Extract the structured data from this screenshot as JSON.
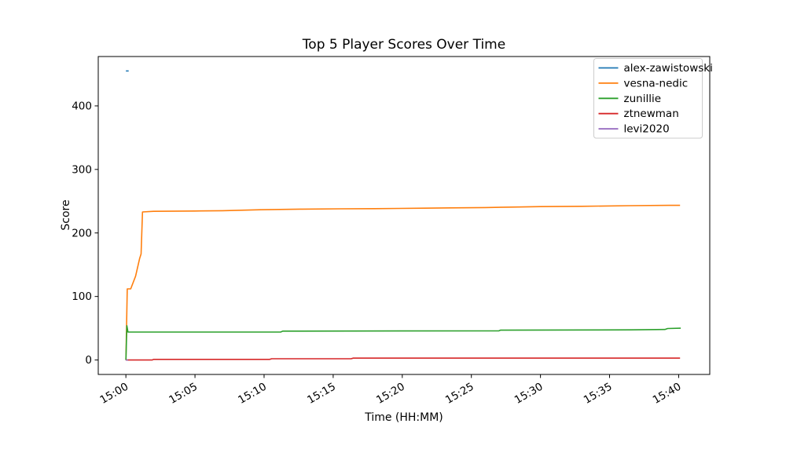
{
  "chart_data": {
    "type": "line",
    "title": "Top 5 Player Scores Over Time",
    "xlabel": "Time (HH:MM)",
    "ylabel": "Score",
    "grid": false,
    "legend_position": "upper right",
    "x_unit": "minutes after 15:00",
    "xlim": [
      -2.0,
      42.25
    ],
    "ylim": [
      -22.75,
      477.75
    ],
    "x_ticks": [
      {
        "t": 0,
        "label": "15:00"
      },
      {
        "t": 5,
        "label": "15:05"
      },
      {
        "t": 10,
        "label": "15:10"
      },
      {
        "t": 15,
        "label": "15:15"
      },
      {
        "t": 20,
        "label": "15:20"
      },
      {
        "t": 25,
        "label": "15:25"
      },
      {
        "t": 30,
        "label": "15:30"
      },
      {
        "t": 35,
        "label": "15:35"
      },
      {
        "t": 40,
        "label": "15:40"
      }
    ],
    "y_ticks": [
      0,
      100,
      200,
      300,
      400
    ],
    "series": [
      {
        "name": "alex-zawistowski",
        "color": "#1f77b4",
        "points": [
          [
            0,
            455
          ],
          [
            0.2,
            455
          ]
        ]
      },
      {
        "name": "vesna-nedic",
        "color": "#ff7f0e",
        "points": [
          [
            0,
            0
          ],
          [
            0.1,
            112
          ],
          [
            0.35,
            112
          ],
          [
            0.7,
            132
          ],
          [
            1.0,
            160
          ],
          [
            1.1,
            167
          ],
          [
            1.2,
            233
          ],
          [
            2,
            234
          ],
          [
            5,
            234.5
          ],
          [
            7,
            235
          ],
          [
            9.7,
            236.5
          ],
          [
            12.8,
            237.5
          ],
          [
            15.5,
            238
          ],
          [
            18,
            238.2
          ],
          [
            21.6,
            239
          ],
          [
            23.5,
            239.5
          ],
          [
            26,
            240
          ],
          [
            28.4,
            240.8
          ],
          [
            30,
            241.5
          ],
          [
            33,
            242
          ],
          [
            36.5,
            243
          ],
          [
            39.3,
            243.5
          ],
          [
            40.1,
            243.5
          ]
        ]
      },
      {
        "name": "zunillie",
        "color": "#2ca02c",
        "points": [
          [
            0,
            0
          ],
          [
            0.07,
            54
          ],
          [
            0.15,
            44
          ],
          [
            11.2,
            44
          ],
          [
            11.35,
            45.5
          ],
          [
            27,
            46
          ],
          [
            27.1,
            47
          ],
          [
            36.5,
            47.5
          ],
          [
            39,
            48
          ],
          [
            39.2,
            49.5
          ],
          [
            40.15,
            50
          ]
        ]
      },
      {
        "name": "ztnewman",
        "color": "#d62728",
        "points": [
          [
            0,
            0
          ],
          [
            1.9,
            0
          ],
          [
            2.0,
            1
          ],
          [
            10.4,
            1
          ],
          [
            10.55,
            2
          ],
          [
            16.3,
            2
          ],
          [
            16.45,
            3
          ],
          [
            40.1,
            3
          ]
        ]
      },
      {
        "name": "levi2020",
        "color": "#9467bd",
        "points": [
          [
            0,
            0
          ],
          [
            0.15,
            0
          ]
        ]
      }
    ]
  }
}
